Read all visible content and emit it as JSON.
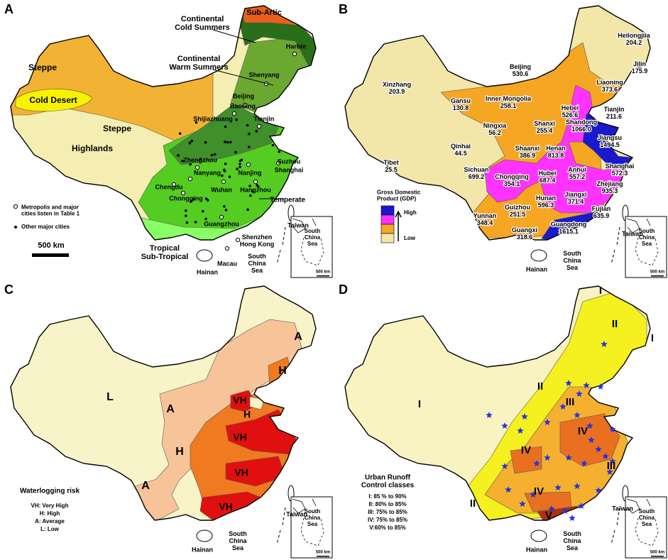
{
  "panel_a": {
    "letter": "A",
    "labels": [
      "Sub-Artic",
      [
        "Continental",
        "Cold Summers"
      ],
      [
        "Continental",
        "Warm Summers"
      ],
      "Harbin",
      "Shenyang",
      "Steppe",
      "Cold Desert",
      "Steppe",
      "Highlands",
      "Beijing",
      "Baoding",
      "Shijiazhuang",
      "Tianjin",
      "Zhengzhou",
      "Nanyang",
      "Nanjing",
      "Suzhou",
      "Shanghai",
      "Chengdu",
      "Chongqing",
      "Wuhan",
      "Hangzhou",
      "Temperate",
      "Guangzhou",
      [
        "Shenzhen",
        "Hong Kong"
      ],
      "Macau",
      [
        "Tropical",
        "Sub-Tropical"
      ],
      "Hainan",
      [
        "South",
        "China",
        "Sea"
      ],
      "Taiwan",
      [
        "Metropolis and major",
        "cities listen in Table 1"
      ],
      "Other major cities",
      "500 km",
      [
        "South",
        "China",
        "Sea"
      ],
      "500 km"
    ]
  },
  "panel_b": {
    "letter": "B",
    "labels": [
      [
        "Heilongjiia",
        "204.2"
      ],
      [
        "Jilin",
        "175.9"
      ],
      [
        "Liaoning",
        "373.6"
      ],
      [
        "Beijing",
        "530.6"
      ],
      [
        "Xinzhang",
        "203.9"
      ],
      [
        "Gansu",
        "130.8"
      ],
      [
        "Inner Mongolia",
        "258.1"
      ],
      [
        "Hebei",
        "526.6"
      ],
      [
        "Tianjin",
        "211.6"
      ],
      [
        "Ningxia",
        "56.2"
      ],
      [
        "Shanxi",
        "255.4"
      ],
      [
        "Shandong",
        "1066.0"
      ],
      [
        "Qinhai",
        "44.5"
      ],
      [
        "Jiangsu",
        "1494.5"
      ],
      [
        "Shaanxi",
        "386.9"
      ],
      [
        "Henan",
        "813.8"
      ],
      [
        "Shanghai",
        "572.3"
      ],
      [
        "Tibet",
        "25.5"
      ],
      [
        "Sichuan",
        "699.2"
      ],
      [
        "Chongqing",
        "354.1"
      ],
      [
        "Hubei",
        "687.4"
      ],
      [
        "Anhui",
        "557.2"
      ],
      [
        "Zhejiang",
        "935.3"
      ],
      [
        "Hunan",
        "596.3"
      ],
      [
        "Jiangxi",
        "371.4"
      ],
      [
        "Fujian",
        "635.9"
      ],
      [
        "Yunnan",
        "348.4"
      ],
      [
        "Guizhou",
        "251.5"
      ],
      [
        "Guangxi",
        "318.6"
      ],
      [
        "Guangdong",
        "1615.1"
      ],
      "Taiwan",
      "Hainan",
      [
        "South",
        "China",
        "Sea"
      ],
      [
        "Gross Domestic",
        "Product (GDP)"
      ],
      "High",
      "Low",
      [
        "South",
        "China",
        "Sea"
      ],
      "500 km"
    ]
  },
  "panel_c": {
    "letter": "C",
    "labels": [
      "L",
      "A",
      "H",
      "VH",
      "A",
      "H",
      "VH",
      "H",
      "VH",
      "A",
      "VH",
      "Waterlogging risk",
      "VH: Very High",
      "H: High",
      "A: Average",
      "L: Low",
      "Taiwan",
      "Hainan",
      [
        "South",
        "China",
        "Sea"
      ],
      [
        "South",
        "China",
        "Sea"
      ],
      "500 km"
    ]
  },
  "panel_d": {
    "letter": "D",
    "labels": [
      "I",
      "II",
      "I",
      "I",
      "II",
      "III",
      "IV",
      "IV",
      "III",
      "II",
      "IV",
      "V",
      [
        "Urban Runoff",
        "Control classes"
      ],
      "I: 85 % to 90%",
      "II: 80% to 85%",
      "III: 75% to 85%",
      "IV: 75% to 85%",
      "V:60% to 85%",
      "Taiwan",
      "Hainan",
      [
        "South",
        "China",
        "Sea"
      ],
      [
        "South",
        "China",
        "Sea"
      ],
      "500 km"
    ]
  }
}
